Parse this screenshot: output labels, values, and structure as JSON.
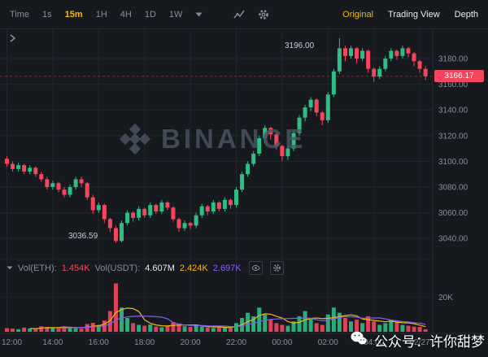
{
  "toolbar": {
    "time_label": "Time",
    "intervals": [
      {
        "label": "1s",
        "active": false
      },
      {
        "label": "15m",
        "active": true
      },
      {
        "label": "1H",
        "active": false
      },
      {
        "label": "4H",
        "active": false
      },
      {
        "label": "1D",
        "active": false
      },
      {
        "label": "1W",
        "active": false
      }
    ],
    "right_tabs": [
      {
        "label": "Original",
        "active": true
      },
      {
        "label": "Trading View",
        "active": false
      },
      {
        "label": "Depth",
        "active": false
      }
    ]
  },
  "badge": {
    "last_price": "3166.17"
  },
  "annotations": {
    "high": "3196.00",
    "low": "3036.59"
  },
  "volume_header": {
    "vol_eth_label": "Vol(ETH):",
    "vol_eth_value": "1.454K",
    "vol_usdt_label": "Vol(USDT):",
    "vol_usdt_value": "4.607M",
    "ma_fast_value": "2.424K",
    "ma_slow_value": "2.697K"
  },
  "watermark": {
    "brand": "BINANCE"
  },
  "overlay_watermark": {
    "text": "公众号：许你甜梦"
  },
  "colors": {
    "up": "#2ebd85",
    "down": "#f6465d",
    "accent": "#f0b90b",
    "ma_fast": "#f0b90b",
    "ma_slow": "#8a5cf6",
    "grid": "#21262e",
    "axis_text": "#848e9c",
    "bg": "#161a1e",
    "badge_bg": "#f6465d"
  },
  "chart_data": {
    "type": "candlestick",
    "interval": "15m",
    "last_price": 3166.17,
    "session_high": 3196.0,
    "session_low": 3036.59,
    "price_ticks": [
      {
        "value": 3180,
        "label": "3180.00"
      },
      {
        "value": 3160,
        "label": "3160.00"
      },
      {
        "value": 3140,
        "label": "3140.00"
      },
      {
        "value": 3120,
        "label": "3120.00"
      },
      {
        "value": 3100,
        "label": "3100.00"
      },
      {
        "value": 3080,
        "label": "3080.00"
      },
      {
        "value": 3060,
        "label": "3060.00"
      },
      {
        "value": 3040,
        "label": "3040.00"
      }
    ],
    "x_ticks": [
      {
        "index": 0,
        "label": "12:00"
      },
      {
        "index": 8,
        "label": "14:00"
      },
      {
        "index": 16,
        "label": "16:00"
      },
      {
        "index": 24,
        "label": "18:00"
      },
      {
        "index": 32,
        "label": "20:00"
      },
      {
        "index": 40,
        "label": "22:00"
      },
      {
        "index": 48,
        "label": "00:00"
      },
      {
        "index": 56,
        "label": "02:00"
      },
      {
        "index": 64,
        "label": "04:00"
      },
      {
        "index": 72,
        "label": "02/27"
      }
    ],
    "vol_ticks": [
      {
        "value": 20,
        "label": "20K"
      }
    ],
    "vol_axis_max_k": 32,
    "candles_ohlc": [
      [
        3102,
        3104,
        3096,
        3098
      ],
      [
        3098,
        3100,
        3092,
        3094
      ],
      [
        3094,
        3099,
        3092,
        3097
      ],
      [
        3097,
        3098,
        3090,
        3092
      ],
      [
        3092,
        3097,
        3090,
        3095
      ],
      [
        3095,
        3096,
        3088,
        3090
      ],
      [
        3090,
        3092,
        3084,
        3086
      ],
      [
        3086,
        3088,
        3078,
        3080
      ],
      [
        3080,
        3085,
        3078,
        3083
      ],
      [
        3083,
        3084,
        3076,
        3078
      ],
      [
        3078,
        3080,
        3072,
        3074
      ],
      [
        3074,
        3082,
        3072,
        3080
      ],
      [
        3080,
        3088,
        3078,
        3086
      ],
      [
        3086,
        3088,
        3080,
        3083
      ],
      [
        3083,
        3084,
        3070,
        3072
      ],
      [
        3072,
        3074,
        3059,
        3062
      ],
      [
        3062,
        3068,
        3060,
        3066
      ],
      [
        3066,
        3067,
        3052,
        3055
      ],
      [
        3055,
        3056,
        3045,
        3048
      ],
      [
        3048,
        3050,
        3036.59,
        3038
      ],
      [
        3038,
        3054,
        3037,
        3052
      ],
      [
        3052,
        3062,
        3050,
        3060
      ],
      [
        3060,
        3061,
        3053,
        3056
      ],
      [
        3056,
        3065,
        3054,
        3063
      ],
      [
        3063,
        3064,
        3056,
        3058
      ],
      [
        3058,
        3068,
        3056,
        3066
      ],
      [
        3066,
        3067,
        3059,
        3061
      ],
      [
        3061,
        3070,
        3059,
        3068
      ],
      [
        3068,
        3069,
        3062,
        3064
      ],
      [
        3064,
        3065,
        3053,
        3055
      ],
      [
        3055,
        3056,
        3045,
        3048
      ],
      [
        3048,
        3054,
        3046,
        3052
      ],
      [
        3052,
        3053,
        3047,
        3050
      ],
      [
        3050,
        3060,
        3048,
        3058
      ],
      [
        3058,
        3067,
        3056,
        3065
      ],
      [
        3065,
        3066,
        3058,
        3061
      ],
      [
        3061,
        3070,
        3059,
        3068
      ],
      [
        3068,
        3069,
        3061,
        3063
      ],
      [
        3063,
        3072,
        3061,
        3070
      ],
      [
        3070,
        3071,
        3063,
        3066
      ],
      [
        3066,
        3080,
        3064,
        3078
      ],
      [
        3078,
        3092,
        3076,
        3090
      ],
      [
        3090,
        3100,
        3088,
        3098
      ],
      [
        3098,
        3108,
        3096,
        3106
      ],
      [
        3106,
        3120,
        3104,
        3118
      ],
      [
        3118,
        3128,
        3114,
        3126
      ],
      [
        3126,
        3127,
        3117,
        3121
      ],
      [
        3121,
        3122,
        3109,
        3112
      ],
      [
        3112,
        3113,
        3100,
        3104
      ],
      [
        3104,
        3112,
        3101,
        3110
      ],
      [
        3110,
        3124,
        3108,
        3122
      ],
      [
        3122,
        3136,
        3120,
        3134
      ],
      [
        3134,
        3144,
        3131,
        3142
      ],
      [
        3142,
        3150,
        3139,
        3148
      ],
      [
        3148,
        3149,
        3135,
        3138
      ],
      [
        3138,
        3139,
        3128,
        3132
      ],
      [
        3132,
        3154,
        3130,
        3152
      ],
      [
        3152,
        3172,
        3150,
        3170
      ],
      [
        3170,
        3196,
        3168,
        3188
      ],
      [
        3188,
        3190,
        3178,
        3182
      ],
      [
        3182,
        3190,
        3180,
        3188
      ],
      [
        3188,
        3189,
        3176,
        3180
      ],
      [
        3180,
        3188,
        3178,
        3186
      ],
      [
        3186,
        3187,
        3169,
        3172
      ],
      [
        3172,
        3173,
        3162,
        3166
      ],
      [
        3166,
        3174,
        3164,
        3172
      ],
      [
        3172,
        3182,
        3170,
        3180
      ],
      [
        3180,
        3188,
        3178,
        3186
      ],
      [
        3186,
        3187,
        3179,
        3182
      ],
      [
        3182,
        3190,
        3180,
        3188
      ],
      [
        3188,
        3189,
        3181,
        3184
      ],
      [
        3184,
        3185,
        3174,
        3178
      ],
      [
        3178,
        3179,
        3169,
        3172
      ],
      [
        3172,
        3174,
        3163,
        3166.17
      ]
    ],
    "volumes_k": [
      2.1,
      1.8,
      1.5,
      2.4,
      1.9,
      1.6,
      3.2,
      2.8,
      2.2,
      2.6,
      3.0,
      2.4,
      2.0,
      1.8,
      4.5,
      5.2,
      4.0,
      6.5,
      12,
      28,
      14,
      8,
      5,
      4,
      3.5,
      4.2,
      3.0,
      2.6,
      3.4,
      5.5,
      4.8,
      3.2,
      2.8,
      3.6,
      3.0,
      2.5,
      2.2,
      2.8,
      2.4,
      2.6,
      5,
      8,
      11,
      9,
      14,
      10,
      7,
      5,
      4,
      3.5,
      6,
      9,
      12,
      8,
      5,
      4,
      10,
      14,
      11,
      8,
      6,
      7,
      5,
      9,
      6,
      4,
      5,
      7,
      6,
      4,
      3.5,
      3.0,
      2.8,
      1.454
    ]
  }
}
